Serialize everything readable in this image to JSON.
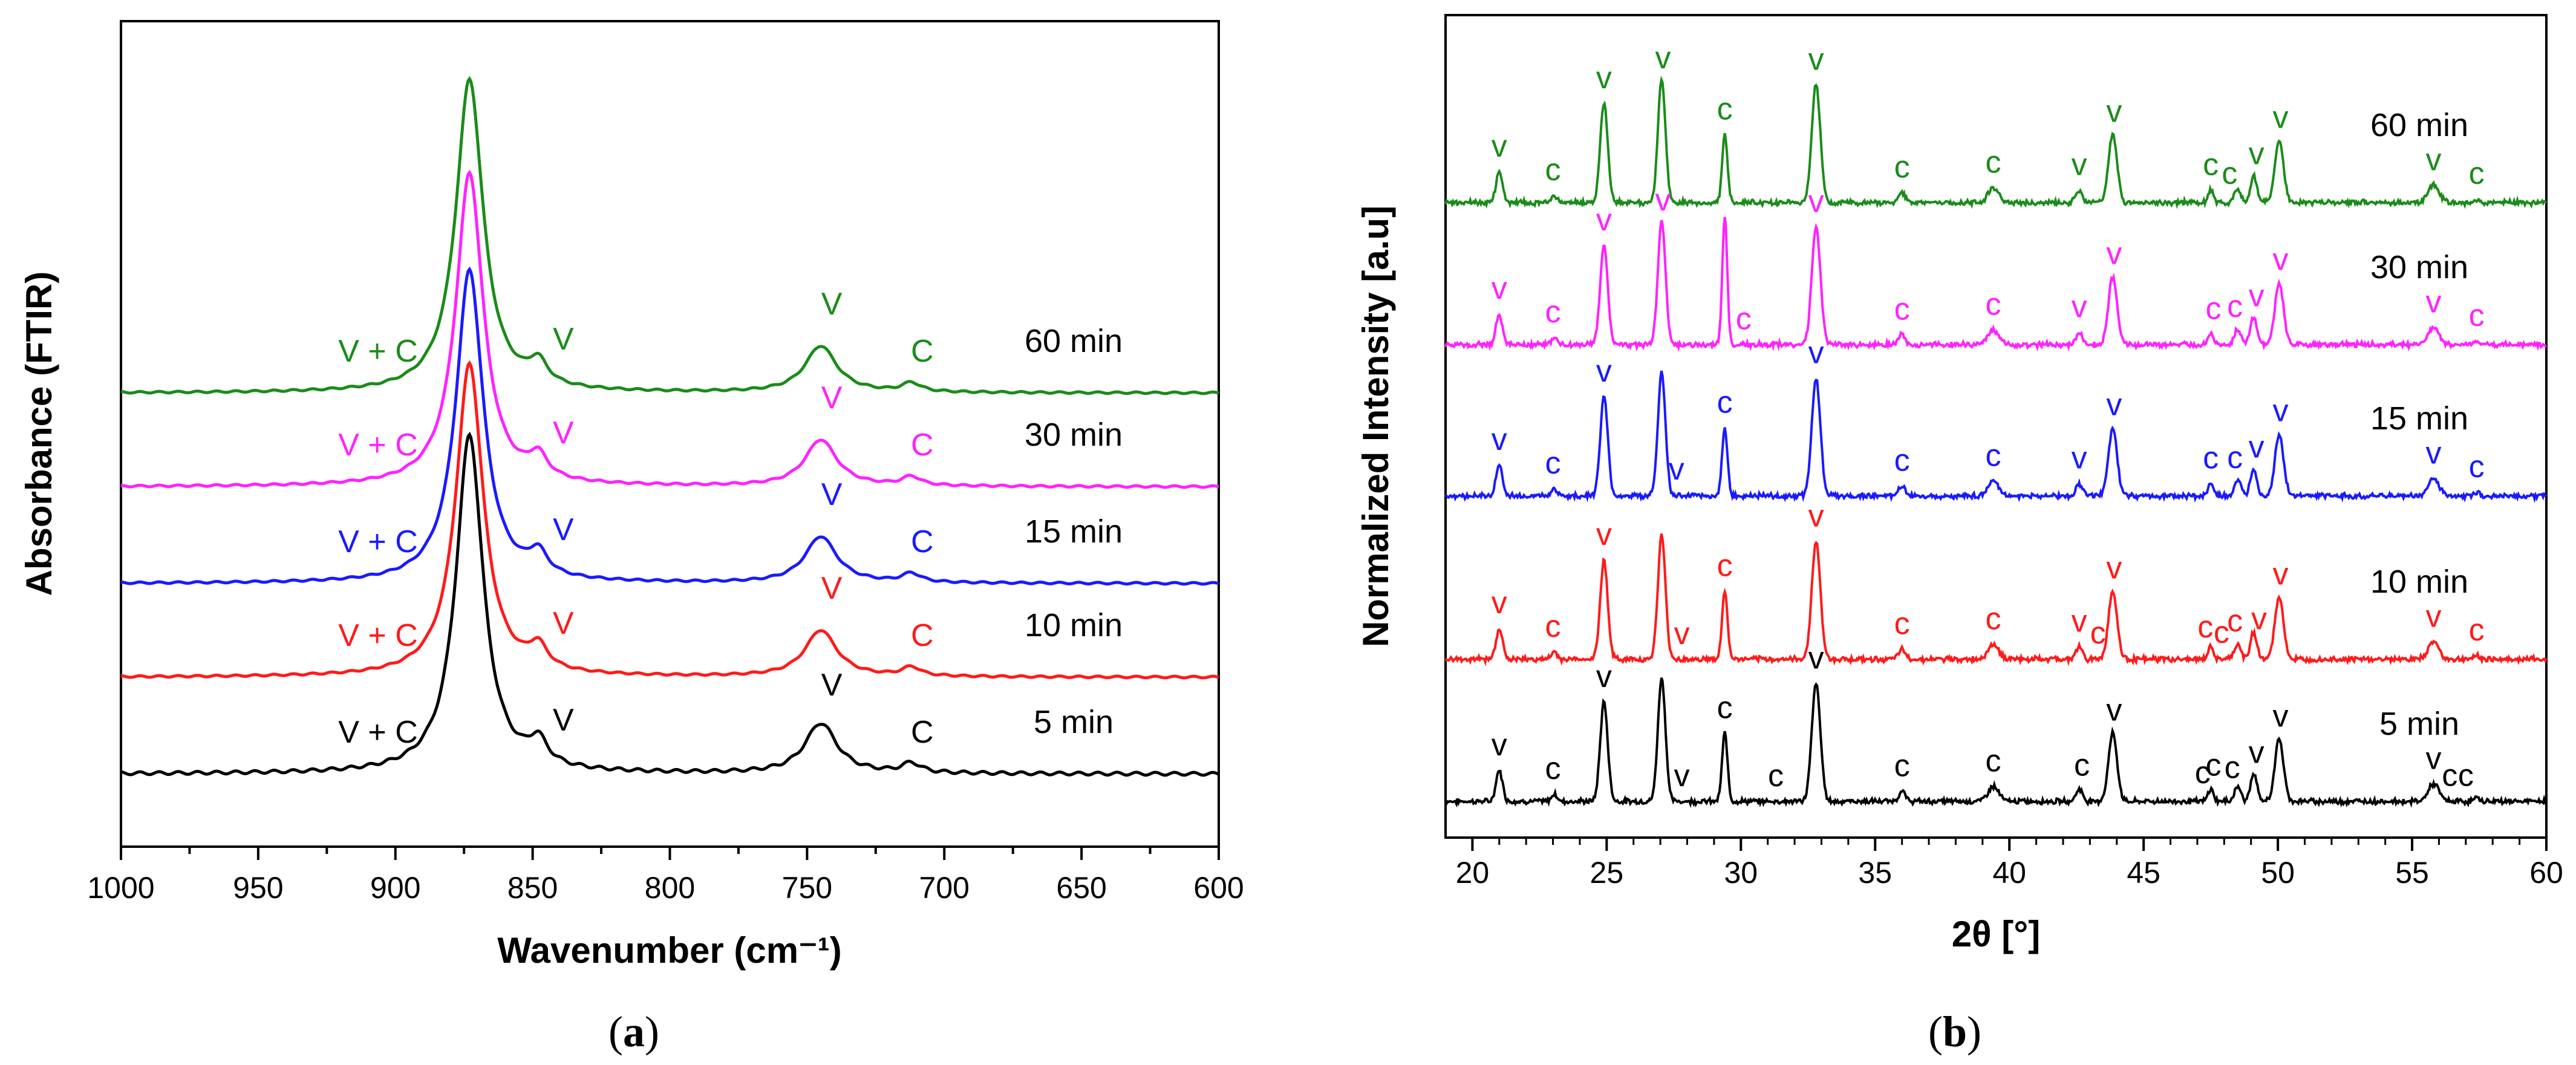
{
  "panels": {
    "a": {
      "caption_letter": "a"
    },
    "b": {
      "caption_letter": "b"
    }
  },
  "chart_data": [
    {
      "id": "a",
      "type": "line",
      "title": "",
      "xlabel": "Wavenumber (cm⁻¹)",
      "ylabel": "Absorbance (FTIR)",
      "xlim": [
        1000,
        600
      ],
      "x_reversed": true,
      "xticks": [
        1000,
        950,
        900,
        850,
        800,
        750,
        700,
        650,
        600
      ],
      "grid": false,
      "series": [
        {
          "name": "5 min",
          "color": "#000000",
          "offset": 0,
          "left_label": "V + C",
          "peak_labels": [
            {
              "x": 845,
              "text": "V"
            },
            {
              "x": 745,
              "text": "V"
            },
            {
              "x": 712,
              "text": "C"
            }
          ]
        },
        {
          "name": "10 min",
          "color": "#ff1a1a",
          "offset": 1.0,
          "left_label": "V + C",
          "peak_labels": [
            {
              "x": 845,
              "text": "V"
            },
            {
              "x": 745,
              "text": "V"
            },
            {
              "x": 712,
              "text": "C"
            }
          ]
        },
        {
          "name": "15 min",
          "color": "#1a1aff",
          "offset": 2.0,
          "left_label": "V + C",
          "peak_labels": [
            {
              "x": 845,
              "text": "V"
            },
            {
              "x": 745,
              "text": "V"
            },
            {
              "x": 712,
              "text": "C"
            }
          ]
        },
        {
          "name": "30 min",
          "color": "#ff22ff",
          "offset": 3.0,
          "left_label": "V + C",
          "peak_labels": [
            {
              "x": 845,
              "text": "V"
            },
            {
              "x": 745,
              "text": "V"
            },
            {
              "x": 712,
              "text": "C"
            }
          ]
        },
        {
          "name": "60 min",
          "color": "#1a8c1a",
          "offset": 4.0,
          "left_label": "V + C",
          "peak_labels": [
            {
              "x": 845,
              "text": "V"
            },
            {
              "x": 745,
              "text": "V"
            },
            {
              "x": 712,
              "text": "C"
            }
          ]
        }
      ],
      "peaks": [
        {
          "center": 873,
          "height": 3.5,
          "width": 6
        },
        {
          "center": 848,
          "height": 0.25,
          "width": 4
        },
        {
          "center": 745,
          "height": 0.52,
          "width": 7
        },
        {
          "center": 712,
          "height": 0.1,
          "width": 4
        }
      ]
    },
    {
      "id": "b",
      "type": "line",
      "title": "",
      "xlabel": "2θ [°]",
      "ylabel": "Normalized Intensity [a.u]",
      "xlim": [
        19,
        60
      ],
      "xticks": [
        20,
        25,
        30,
        35,
        40,
        45,
        50,
        55,
        60
      ],
      "grid": false,
      "series": [
        {
          "name": "5 min",
          "color": "#000000",
          "offset": 0,
          "marks": [
            {
              "x": 21,
              "text": "v"
            },
            {
              "x": 23,
              "text": "c"
            },
            {
              "x": 24.9,
              "text": "v"
            },
            {
              "x": 27.8,
              "text": "v"
            },
            {
              "x": 29.4,
              "text": "c"
            },
            {
              "x": 31.3,
              "text": "c"
            },
            {
              "x": 32.8,
              "text": "v"
            },
            {
              "x": 36,
              "text": "c"
            },
            {
              "x": 39.4,
              "text": "c"
            },
            {
              "x": 42.7,
              "text": "c"
            },
            {
              "x": 43.9,
              "text": "v"
            },
            {
              "x": 47.2,
              "text": "c"
            },
            {
              "x": 47.6,
              "text": "c"
            },
            {
              "x": 48.3,
              "text": "c"
            },
            {
              "x": 49.2,
              "text": "v"
            },
            {
              "x": 50.1,
              "text": "v"
            },
            {
              "x": 55.8,
              "text": "v"
            },
            {
              "x": 56.4,
              "text": "c"
            },
            {
              "x": 57,
              "text": "c"
            }
          ]
        },
        {
          "name": "10 min",
          "color": "#ff1a1a",
          "offset": 1.0,
          "marks": [
            {
              "x": 21,
              "text": "v"
            },
            {
              "x": 23,
              "text": "c"
            },
            {
              "x": 24.9,
              "text": "v"
            },
            {
              "x": 27.8,
              "text": "v"
            },
            {
              "x": 29.4,
              "text": "c"
            },
            {
              "x": 32.8,
              "text": "v"
            },
            {
              "x": 36,
              "text": "c"
            },
            {
              "x": 39.4,
              "text": "c"
            },
            {
              "x": 42.6,
              "text": "v"
            },
            {
              "x": 43.3,
              "text": "c"
            },
            {
              "x": 43.9,
              "text": "v"
            },
            {
              "x": 47.3,
              "text": "c"
            },
            {
              "x": 47.9,
              "text": "c"
            },
            {
              "x": 48.4,
              "text": "c"
            },
            {
              "x": 49.3,
              "text": "v"
            },
            {
              "x": 50.1,
              "text": "v"
            },
            {
              "x": 55.8,
              "text": "v"
            },
            {
              "x": 57.4,
              "text": "c"
            }
          ]
        },
        {
          "name": "15 min",
          "color": "#1a1aff",
          "offset": 2.0,
          "marks": [
            {
              "x": 21,
              "text": "v"
            },
            {
              "x": 23,
              "text": "c"
            },
            {
              "x": 24.9,
              "text": "v"
            },
            {
              "x": 27.6,
              "text": "v"
            },
            {
              "x": 29.4,
              "text": "c"
            },
            {
              "x": 32.8,
              "text": "v"
            },
            {
              "x": 36,
              "text": "c"
            },
            {
              "x": 39.4,
              "text": "c"
            },
            {
              "x": 42.6,
              "text": "v"
            },
            {
              "x": 43.9,
              "text": "v"
            },
            {
              "x": 47.5,
              "text": "c"
            },
            {
              "x": 48.4,
              "text": "c"
            },
            {
              "x": 49.2,
              "text": "v"
            },
            {
              "x": 50.1,
              "text": "v"
            },
            {
              "x": 55.8,
              "text": "v"
            },
            {
              "x": 57.4,
              "text": "c"
            }
          ]
        },
        {
          "name": "30 min",
          "color": "#ff22ff",
          "offset": 3.0,
          "marks": [
            {
              "x": 21,
              "text": "v"
            },
            {
              "x": 23,
              "text": "c"
            },
            {
              "x": 24.9,
              "text": "v"
            },
            {
              "x": 27.1,
              "text": "v"
            },
            {
              "x": 30.1,
              "text": "c"
            },
            {
              "x": 32.8,
              "text": "v"
            },
            {
              "x": 36,
              "text": "c"
            },
            {
              "x": 39.4,
              "text": "c"
            },
            {
              "x": 42.6,
              "text": "v"
            },
            {
              "x": 43.9,
              "text": "v"
            },
            {
              "x": 47.6,
              "text": "c"
            },
            {
              "x": 48.4,
              "text": "c"
            },
            {
              "x": 49.2,
              "text": "v"
            },
            {
              "x": 50.1,
              "text": "v"
            },
            {
              "x": 55.8,
              "text": "v"
            },
            {
              "x": 57.4,
              "text": "c"
            }
          ]
        },
        {
          "name": "60 min",
          "color": "#1a8c1a",
          "offset": 4.0,
          "marks": [
            {
              "x": 21,
              "text": "v"
            },
            {
              "x": 23,
              "text": "c"
            },
            {
              "x": 24.9,
              "text": "v"
            },
            {
              "x": 27.1,
              "text": "v"
            },
            {
              "x": 29.4,
              "text": "c"
            },
            {
              "x": 32.8,
              "text": "v"
            },
            {
              "x": 36,
              "text": "c"
            },
            {
              "x": 39.4,
              "text": "c"
            },
            {
              "x": 42.6,
              "text": "v"
            },
            {
              "x": 43.9,
              "text": "v"
            },
            {
              "x": 47.5,
              "text": "c"
            },
            {
              "x": 48.2,
              "text": "c"
            },
            {
              "x": 49.2,
              "text": "v"
            },
            {
              "x": 50.1,
              "text": "v"
            },
            {
              "x": 55.8,
              "text": "v"
            },
            {
              "x": 57.4,
              "text": "c"
            }
          ]
        }
      ],
      "peaks": [
        {
          "center": 21.0,
          "height": 0.25,
          "width": 0.12
        },
        {
          "center": 23.05,
          "height": 0.06,
          "width": 0.1
        },
        {
          "center": 24.9,
          "height": 0.8,
          "width": 0.14
        },
        {
          "center": 27.05,
          "height": 1.0,
          "width": 0.14
        },
        {
          "center": 29.4,
          "height": 0.55,
          "width": 0.1
        },
        {
          "center": 32.8,
          "height": 0.95,
          "width": 0.16
        },
        {
          "center": 36.0,
          "height": 0.08,
          "width": 0.12
        },
        {
          "center": 39.4,
          "height": 0.12,
          "width": 0.2
        },
        {
          "center": 42.6,
          "height": 0.1,
          "width": 0.12
        },
        {
          "center": 43.85,
          "height": 0.55,
          "width": 0.16
        },
        {
          "center": 47.5,
          "height": 0.1,
          "width": 0.1
        },
        {
          "center": 48.5,
          "height": 0.12,
          "width": 0.12
        },
        {
          "center": 49.1,
          "height": 0.22,
          "width": 0.12
        },
        {
          "center": 50.05,
          "height": 0.5,
          "width": 0.16
        },
        {
          "center": 55.8,
          "height": 0.14,
          "width": 0.2
        },
        {
          "center": 57.4,
          "height": 0.03,
          "width": 0.1
        }
      ],
      "sharp_peak": {
        "series": "30 min",
        "center": 29.4,
        "height": 1.05,
        "width": 0.08
      }
    }
  ]
}
